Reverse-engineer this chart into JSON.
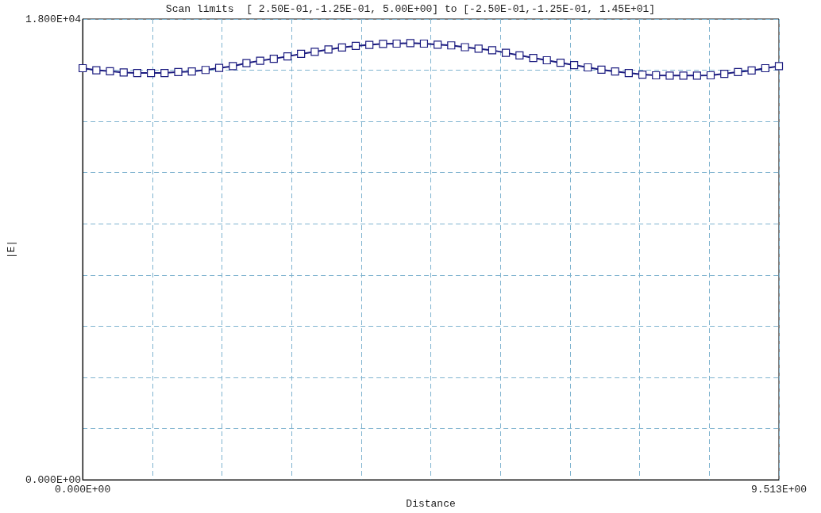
{
  "chart_data": {
    "type": "line",
    "title": "Scan limits  [ 2.50E-01,-1.25E-01, 5.00E+00] to [-2.50E-01,-1.25E-01, 1.45E+01]",
    "xlabel": "Distance",
    "ylabel": "|E|",
    "x": [
      0,
      0.187,
      0.373,
      0.56,
      0.746,
      0.933,
      1.119,
      1.306,
      1.492,
      1.679,
      1.865,
      2.052,
      2.238,
      2.425,
      2.611,
      2.798,
      2.984,
      3.171,
      3.358,
      3.544,
      3.731,
      3.917,
      4.104,
      4.29,
      4.477,
      4.663,
      4.85,
      5.036,
      5.223,
      5.409,
      5.596,
      5.782,
      5.969,
      6.156,
      6.342,
      6.529,
      6.715,
      6.902,
      7.088,
      7.275,
      7.461,
      7.648,
      7.834,
      8.021,
      8.207,
      8.394,
      8.58,
      8.767,
      8.954,
      9.14,
      9.327,
      9.513
    ],
    "series": [
      {
        "color": "#1c1c80",
        "values": [
          16080,
          16000,
          15960,
          15910,
          15890,
          15890,
          15890,
          15930,
          15950,
          16010,
          16090,
          16160,
          16280,
          16370,
          16450,
          16540,
          16640,
          16720,
          16810,
          16890,
          16950,
          16990,
          17030,
          17040,
          17060,
          17040,
          17000,
          16970,
          16900,
          16840,
          16780,
          16680,
          16580,
          16480,
          16390,
          16290,
          16200,
          16110,
          16020,
          15950,
          15890,
          15830,
          15800,
          15790,
          15790,
          15790,
          15800,
          15860,
          15930,
          15990,
          16080,
          16160
        ]
      }
    ],
    "xlim": [
      0,
      9.513
    ],
    "ylim": [
      0,
      18000
    ],
    "xticks": [
      {
        "value": 0,
        "label": "0.000E+00"
      },
      {
        "value": 0.9513,
        "label": null
      },
      {
        "value": 1.9026,
        "label": null
      },
      {
        "value": 2.8539,
        "label": null
      },
      {
        "value": 3.8052,
        "label": null
      },
      {
        "value": 4.7565,
        "label": null
      },
      {
        "value": 5.7078,
        "label": null
      },
      {
        "value": 6.6591,
        "label": null
      },
      {
        "value": 7.6104,
        "label": null
      },
      {
        "value": 8.5617,
        "label": null
      },
      {
        "value": 9.513,
        "label": "9.513E+00"
      }
    ],
    "yticks": [
      {
        "value": 0,
        "label": "0.000E+00"
      },
      {
        "value": 2000,
        "label": null
      },
      {
        "value": 4000,
        "label": null
      },
      {
        "value": 6000,
        "label": null
      },
      {
        "value": 8000,
        "label": null
      },
      {
        "value": 10000,
        "label": null
      },
      {
        "value": 12000,
        "label": null
      },
      {
        "value": 14000,
        "label": null
      },
      {
        "value": 16000,
        "label": null
      },
      {
        "value": 18000,
        "label": "1.800E+04"
      }
    ],
    "grid": true,
    "marker": "square",
    "line_style": "solid"
  }
}
